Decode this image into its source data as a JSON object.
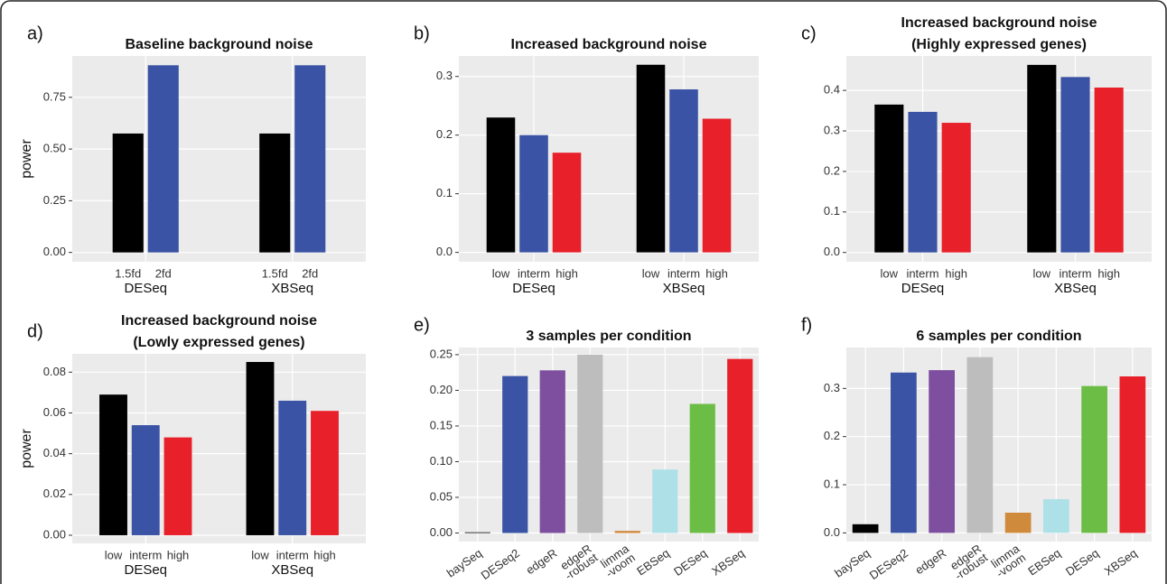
{
  "chart_data": [
    {
      "type": "grouped_bar",
      "label": "a)",
      "title": [
        "Baseline background noise"
      ],
      "ylabel": "power",
      "categories": [
        "1.5fd",
        "2fd"
      ],
      "colors": [
        "#000000",
        "#3a53a4"
      ],
      "groups": [
        {
          "name": "DESeq",
          "values": [
            0.575,
            0.905
          ]
        },
        {
          "name": "XBSeq",
          "values": [
            0.575,
            0.905
          ]
        }
      ],
      "ylim": [
        -0.045,
        0.95
      ],
      "yticks": [
        {
          "value": 0,
          "label": "0.00"
        },
        0.25,
        {
          "value": 0.5,
          "label": "0.50"
        },
        0.75
      ],
      "grid": true
    },
    {
      "type": "grouped_bar",
      "label": "b)",
      "title": [
        "Increased background noise"
      ],
      "categories": [
        "low",
        "interm",
        "high"
      ],
      "colors": [
        "#000000",
        "#3a53a4",
        "#e8202a"
      ],
      "groups": [
        {
          "name": "DESeq",
          "values": [
            0.23,
            0.2,
            0.17
          ]
        },
        {
          "name": "XBSeq",
          "values": [
            0.32,
            0.278,
            0.228
          ]
        }
      ],
      "ylim": [
        -0.016,
        0.335
      ],
      "yticks": [
        {
          "value": 0,
          "label": "0.0"
        },
        0.1,
        0.2,
        0.3
      ],
      "grid": true
    },
    {
      "type": "grouped_bar",
      "label": "c)",
      "title": [
        "Increased background noise",
        "(Highly expressed genes)"
      ],
      "categories": [
        "low",
        "interm",
        "high"
      ],
      "colors": [
        "#000000",
        "#3a53a4",
        "#e8202a"
      ],
      "groups": [
        {
          "name": "DESeq",
          "values": [
            0.365,
            0.347,
            0.32
          ]
        },
        {
          "name": "XBSeq",
          "values": [
            0.463,
            0.433,
            0.407
          ]
        }
      ],
      "ylim": [
        -0.023,
        0.485
      ],
      "yticks": [
        {
          "value": 0,
          "label": "0.0"
        },
        0.1,
        0.2,
        0.3,
        0.4
      ],
      "grid": true
    },
    {
      "type": "grouped_bar",
      "label": "d)",
      "title": [
        "Increased background noise",
        "(Lowly expressed genes)"
      ],
      "ylabel": "power",
      "categories": [
        "low",
        "interm",
        "high"
      ],
      "colors": [
        "#000000",
        "#3a53a4",
        "#e8202a"
      ],
      "groups": [
        {
          "name": "DESeq",
          "values": [
            0.069,
            0.054,
            0.048
          ]
        },
        {
          "name": "XBSeq",
          "values": [
            0.085,
            0.066,
            0.061
          ]
        }
      ],
      "ylim": [
        -0.004,
        0.089
      ],
      "yticks": [
        {
          "value": 0,
          "label": "0.00"
        },
        0.02,
        0.04,
        0.06,
        0.08
      ],
      "grid": true
    },
    {
      "type": "bar",
      "label": "e)",
      "title": [
        "3 samples per condition"
      ],
      "categories": [
        [
          "baySeq"
        ],
        [
          "DESeq2"
        ],
        [
          "edgeR"
        ],
        [
          "edgeR",
          "-robust"
        ],
        [
          "limma",
          "-voom"
        ],
        [
          "EBSeq"
        ],
        [
          "DESeq"
        ],
        [
          "XBSeq"
        ]
      ],
      "colors": [
        "#000000",
        "#3a53a4",
        "#7d4f9e",
        "#bdbdbd",
        "#d08a3c",
        "#aee0e8",
        "#6cbd45",
        "#e8202a"
      ],
      "values": [
        0.001,
        0.22,
        0.228,
        0.25,
        0.003,
        0.089,
        0.181,
        0.244
      ],
      "ylim": [
        -0.012,
        0.26
      ],
      "yticks": [
        {
          "value": 0,
          "label": "0.00"
        },
        0.05,
        {
          "value": 0.1,
          "label": "0.10"
        },
        0.15,
        {
          "value": 0.2,
          "label": "0.20"
        },
        0.25
      ],
      "grid": true
    },
    {
      "type": "bar",
      "label": "f)",
      "title": [
        "6 samples per condition"
      ],
      "categories": [
        [
          "baySeq"
        ],
        [
          "DESeq2"
        ],
        [
          "edgeR"
        ],
        [
          "edgeR",
          "-robust"
        ],
        [
          "limma",
          "-voom"
        ],
        [
          "EBSeq"
        ],
        [
          "DESeq"
        ],
        [
          "XBSeq"
        ]
      ],
      "colors": [
        "#000000",
        "#3a53a4",
        "#7d4f9e",
        "#bdbdbd",
        "#d08a3c",
        "#aee0e8",
        "#6cbd45",
        "#e8202a"
      ],
      "values": [
        0.018,
        0.333,
        0.338,
        0.365,
        0.042,
        0.07,
        0.305,
        0.325
      ],
      "ylim": [
        -0.018,
        0.385
      ],
      "yticks": [
        {
          "value": 0,
          "label": "0.0"
        },
        0.1,
        0.2,
        0.3
      ],
      "grid": true
    }
  ]
}
